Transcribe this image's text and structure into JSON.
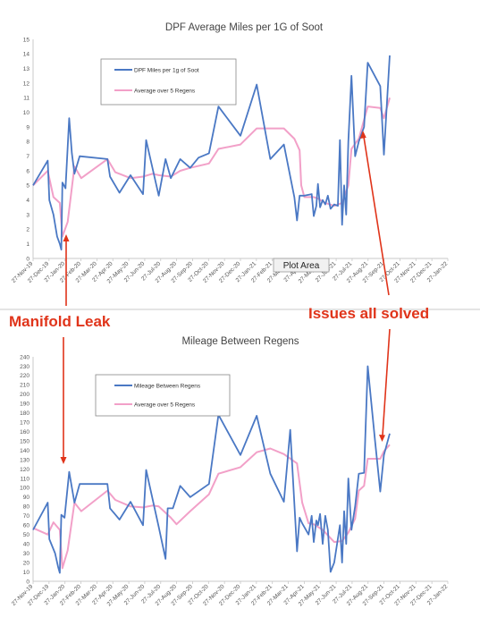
{
  "annotations": {
    "left": "Manifold Leak",
    "right": "Issues all solved",
    "tooltip": "Plot Area"
  },
  "colors": {
    "series": "#4a78c4",
    "average": "#f2a0c8",
    "annotation": "#e0341a"
  },
  "chart_data": [
    {
      "type": "line",
      "title": "DPF Average Miles per 1G of Soot",
      "xlabel": "",
      "ylabel": "",
      "ylim": [
        0,
        15
      ],
      "yticks": [
        "0",
        "1",
        "2",
        "3",
        "4",
        "5",
        "6",
        "7",
        "8",
        "9",
        "10",
        "11",
        "12",
        "13",
        "14",
        "15"
      ],
      "x_tick_labels": [
        "27-Nov-19",
        "27-Dec-19",
        "27-Jan-20",
        "27-Feb-20",
        "27-Mar-20",
        "27-Apr-20",
        "27-May-20",
        "27-Jun-20",
        "27-Jul-20",
        "27-Aug-20",
        "27-Sep-20",
        "27-Oct-20",
        "27-Nov-20",
        "27-Dec-20",
        "27-Jan-21",
        "27-Feb-21",
        "27-Mar-21",
        "27-Apr-21",
        "27-May-21",
        "27-Jun-21",
        "27-Jul-21",
        "27-Aug-21",
        "27-Sep-21",
        "27-Oct-21",
        "27-Nov-21",
        "27-Dec-21",
        "27-Jan-22"
      ],
      "legend_position": "top-left",
      "grid": false,
      "series": [
        {
          "name": "DPF Miles per 1g of Soot",
          "color": "#4a78c4",
          "points": [
            [
              "2019-11-27",
              5.0
            ],
            [
              "2019-12-25",
              6.7
            ],
            [
              "2019-12-28",
              4.0
            ],
            [
              "2020-01-05",
              3.0
            ],
            [
              "2020-01-12",
              1.5
            ],
            [
              "2020-01-17",
              1.0
            ],
            [
              "2020-01-20",
              0.6
            ],
            [
              "2020-01-22",
              5.2
            ],
            [
              "2020-01-28",
              4.8
            ],
            [
              "2020-02-04",
              9.6
            ],
            [
              "2020-02-09",
              7.2
            ],
            [
              "2020-02-14",
              5.8
            ],
            [
              "2020-02-24",
              7.0
            ],
            [
              "2020-04-17",
              6.8
            ],
            [
              "2020-04-22",
              5.6
            ],
            [
              "2020-05-10",
              4.5
            ],
            [
              "2020-05-31",
              5.7
            ],
            [
              "2020-06-24",
              4.4
            ],
            [
              "2020-06-30",
              8.1
            ],
            [
              "2020-07-24",
              4.3
            ],
            [
              "2020-08-06",
              6.8
            ],
            [
              "2020-08-16",
              5.5
            ],
            [
              "2020-09-03",
              6.8
            ],
            [
              "2020-09-22",
              6.2
            ],
            [
              "2020-10-08",
              6.9
            ],
            [
              "2020-10-28",
              7.2
            ],
            [
              "2020-11-15",
              10.4
            ],
            [
              "2020-12-27",
              8.4
            ],
            [
              "2021-01-27",
              11.9
            ],
            [
              "2021-02-22",
              6.8
            ],
            [
              "2021-03-20",
              7.8
            ],
            [
              "2021-04-09",
              4.2
            ],
            [
              "2021-04-14",
              2.6
            ],
            [
              "2021-04-19",
              4.3
            ],
            [
              "2021-04-28",
              4.3
            ],
            [
              "2021-05-12",
              4.4
            ],
            [
              "2021-05-16",
              2.9
            ],
            [
              "2021-05-21",
              3.6
            ],
            [
              "2021-05-24",
              5.1
            ],
            [
              "2021-05-28",
              3.5
            ],
            [
              "2021-06-02",
              4.0
            ],
            [
              "2021-06-07",
              3.7
            ],
            [
              "2021-06-12",
              4.3
            ],
            [
              "2021-06-17",
              3.4
            ],
            [
              "2021-06-24",
              3.7
            ],
            [
              "2021-07-01",
              3.6
            ],
            [
              "2021-07-05",
              8.1
            ],
            [
              "2021-07-09",
              2.3
            ],
            [
              "2021-07-13",
              5.0
            ],
            [
              "2021-07-17",
              3.0
            ],
            [
              "2021-07-21",
              8.0
            ],
            [
              "2021-07-27",
              12.5
            ],
            [
              "2021-08-03",
              7.0
            ],
            [
              "2021-08-10",
              8.0
            ],
            [
              "2021-08-20",
              9.0
            ],
            [
              "2021-08-27",
              13.4
            ],
            [
              "2021-09-20",
              11.8
            ],
            [
              "2021-09-27",
              7.1
            ],
            [
              "2021-10-08",
              13.9
            ]
          ]
        },
        {
          "name": "Average over 5 Regens",
          "color": "#f2a0c8",
          "points": [
            [
              "2019-11-27",
              5.0
            ],
            [
              "2019-12-25",
              6.0
            ],
            [
              "2020-01-05",
              4.2
            ],
            [
              "2020-01-17",
              3.8
            ],
            [
              "2020-01-22",
              1.5
            ],
            [
              "2020-02-01",
              2.5
            ],
            [
              "2020-02-14",
              6.3
            ],
            [
              "2020-02-27",
              5.5
            ],
            [
              "2020-04-17",
              6.8
            ],
            [
              "2020-05-02",
              5.9
            ],
            [
              "2020-05-31",
              5.5
            ],
            [
              "2020-06-24",
              5.6
            ],
            [
              "2020-07-12",
              5.8
            ],
            [
              "2020-07-24",
              5.7
            ],
            [
              "2020-08-16",
              5.6
            ],
            [
              "2020-09-03",
              6.0
            ],
            [
              "2020-09-22",
              6.2
            ],
            [
              "2020-10-28",
              6.5
            ],
            [
              "2020-11-15",
              7.5
            ],
            [
              "2020-12-27",
              7.8
            ],
            [
              "2021-01-27",
              8.9
            ],
            [
              "2021-02-22",
              8.9
            ],
            [
              "2021-03-20",
              8.9
            ],
            [
              "2021-04-09",
              8.2
            ],
            [
              "2021-04-19",
              7.4
            ],
            [
              "2021-04-22",
              5.0
            ],
            [
              "2021-04-28",
              4.2
            ],
            [
              "2021-05-16",
              4.2
            ],
            [
              "2021-05-24",
              4.1
            ],
            [
              "2021-06-07",
              3.8
            ],
            [
              "2021-06-24",
              3.6
            ],
            [
              "2021-07-09",
              3.8
            ],
            [
              "2021-07-21",
              5.0
            ],
            [
              "2021-07-27",
              7.5
            ],
            [
              "2021-08-10",
              8.2
            ],
            [
              "2021-08-27",
              10.4
            ],
            [
              "2021-09-20",
              10.3
            ],
            [
              "2021-09-27",
              9.6
            ],
            [
              "2021-10-08",
              11.0
            ]
          ]
        }
      ]
    },
    {
      "type": "line",
      "title": "Mileage Between Regens",
      "xlabel": "",
      "ylabel": "",
      "ylim": [
        0,
        240
      ],
      "yticks": [
        "0",
        "10",
        "20",
        "30",
        "40",
        "50",
        "60",
        "70",
        "80",
        "90",
        "100",
        "110",
        "120",
        "130",
        "140",
        "150",
        "160",
        "170",
        "180",
        "190",
        "200",
        "210",
        "220",
        "230",
        "240"
      ],
      "x_tick_labels": [
        "27-Nov-19",
        "27-Dec-19",
        "27-Jan-20",
        "27-Feb-20",
        "27-Mar-20",
        "27-Apr-20",
        "27-May-20",
        "27-Jun-20",
        "27-Jul-20",
        "27-Aug-20",
        "27-Sep-20",
        "27-Oct-20",
        "27-Nov-20",
        "27-Dec-20",
        "27-Jan-21",
        "27-Feb-21",
        "27-Mar-21",
        "27-Apr-21",
        "27-May-21",
        "27-Jun-21",
        "27-Jul-21",
        "27-Aug-21",
        "27-Sep-21",
        "27-Oct-21",
        "27-Nov-21",
        "27-Dec-21",
        "27-Jan-22"
      ],
      "legend_position": "top-left",
      "grid": false,
      "series": [
        {
          "name": "Mileage Between Regens",
          "color": "#4a78c4",
          "points": [
            [
              "2019-11-27",
              55
            ],
            [
              "2019-12-25",
              84
            ],
            [
              "2019-12-28",
              45
            ],
            [
              "2020-01-08",
              30
            ],
            [
              "2020-01-14",
              15
            ],
            [
              "2020-01-17",
              9
            ],
            [
              "2020-01-20",
              71
            ],
            [
              "2020-01-26",
              68
            ],
            [
              "2020-02-04",
              117
            ],
            [
              "2020-02-14",
              84
            ],
            [
              "2020-02-24",
              104
            ],
            [
              "2020-04-17",
              104
            ],
            [
              "2020-04-22",
              78
            ],
            [
              "2020-05-10",
              66
            ],
            [
              "2020-05-31",
              85
            ],
            [
              "2020-06-24",
              60
            ],
            [
              "2020-06-30",
              119
            ],
            [
              "2020-07-24",
              58
            ],
            [
              "2020-08-06",
              24
            ],
            [
              "2020-08-10",
              78
            ],
            [
              "2020-08-20",
              78
            ],
            [
              "2020-09-03",
              102
            ],
            [
              "2020-09-22",
              90
            ],
            [
              "2020-10-28",
              104
            ],
            [
              "2020-11-15",
              178
            ],
            [
              "2020-12-27",
              135
            ],
            [
              "2021-01-27",
              177
            ],
            [
              "2021-02-22",
              115
            ],
            [
              "2021-03-20",
              85
            ],
            [
              "2021-04-01",
              162
            ],
            [
              "2021-04-14",
              32
            ],
            [
              "2021-04-19",
              68
            ],
            [
              "2021-04-24",
              62
            ],
            [
              "2021-05-06",
              50
            ],
            [
              "2021-05-12",
              70
            ],
            [
              "2021-05-16",
              42
            ],
            [
              "2021-05-21",
              65
            ],
            [
              "2021-05-24",
              60
            ],
            [
              "2021-05-28",
              72
            ],
            [
              "2021-06-02",
              40
            ],
            [
              "2021-06-07",
              70
            ],
            [
              "2021-06-12",
              55
            ],
            [
              "2021-06-17",
              10
            ],
            [
              "2021-06-24",
              20
            ],
            [
              "2021-07-05",
              60
            ],
            [
              "2021-07-09",
              20
            ],
            [
              "2021-07-13",
              75
            ],
            [
              "2021-07-17",
              40
            ],
            [
              "2021-07-21",
              110
            ],
            [
              "2021-07-27",
              55
            ],
            [
              "2021-08-03",
              80
            ],
            [
              "2021-08-10",
              115
            ],
            [
              "2021-08-20",
              116
            ],
            [
              "2021-08-27",
              230
            ],
            [
              "2021-09-10",
              150
            ],
            [
              "2021-09-20",
              96
            ],
            [
              "2021-09-27",
              135
            ],
            [
              "2021-10-08",
              158
            ]
          ]
        },
        {
          "name": "Average over 5 Regens",
          "color": "#f2a0c8",
          "points": [
            [
              "2019-11-27",
              57
            ],
            [
              "2019-12-25",
              50
            ],
            [
              "2020-01-05",
              63
            ],
            [
              "2020-01-17",
              55
            ],
            [
              "2020-01-22",
              14
            ],
            [
              "2020-02-01",
              33
            ],
            [
              "2020-02-14",
              84
            ],
            [
              "2020-02-27",
              75
            ],
            [
              "2020-04-17",
              97
            ],
            [
              "2020-05-02",
              87
            ],
            [
              "2020-05-31",
              80
            ],
            [
              "2020-06-24",
              79
            ],
            [
              "2020-07-12",
              81
            ],
            [
              "2020-07-24",
              80
            ],
            [
              "2020-08-16",
              68
            ],
            [
              "2020-08-27",
              61
            ],
            [
              "2020-09-22",
              75
            ],
            [
              "2020-10-28",
              93
            ],
            [
              "2020-11-15",
              115
            ],
            [
              "2020-12-27",
              122
            ],
            [
              "2021-01-27",
              138
            ],
            [
              "2021-02-22",
              142
            ],
            [
              "2021-03-20",
              136
            ],
            [
              "2021-04-14",
              126
            ],
            [
              "2021-04-24",
              84
            ],
            [
              "2021-05-06",
              62
            ],
            [
              "2021-05-16",
              61
            ],
            [
              "2021-06-02",
              55
            ],
            [
              "2021-06-24",
              42
            ],
            [
              "2021-07-09",
              43
            ],
            [
              "2021-07-21",
              52
            ],
            [
              "2021-08-03",
              67
            ],
            [
              "2021-08-10",
              97
            ],
            [
              "2021-08-20",
              102
            ],
            [
              "2021-08-27",
              131
            ],
            [
              "2021-09-20",
              131
            ],
            [
              "2021-09-27",
              139
            ],
            [
              "2021-10-08",
              146
            ]
          ]
        }
      ]
    }
  ]
}
